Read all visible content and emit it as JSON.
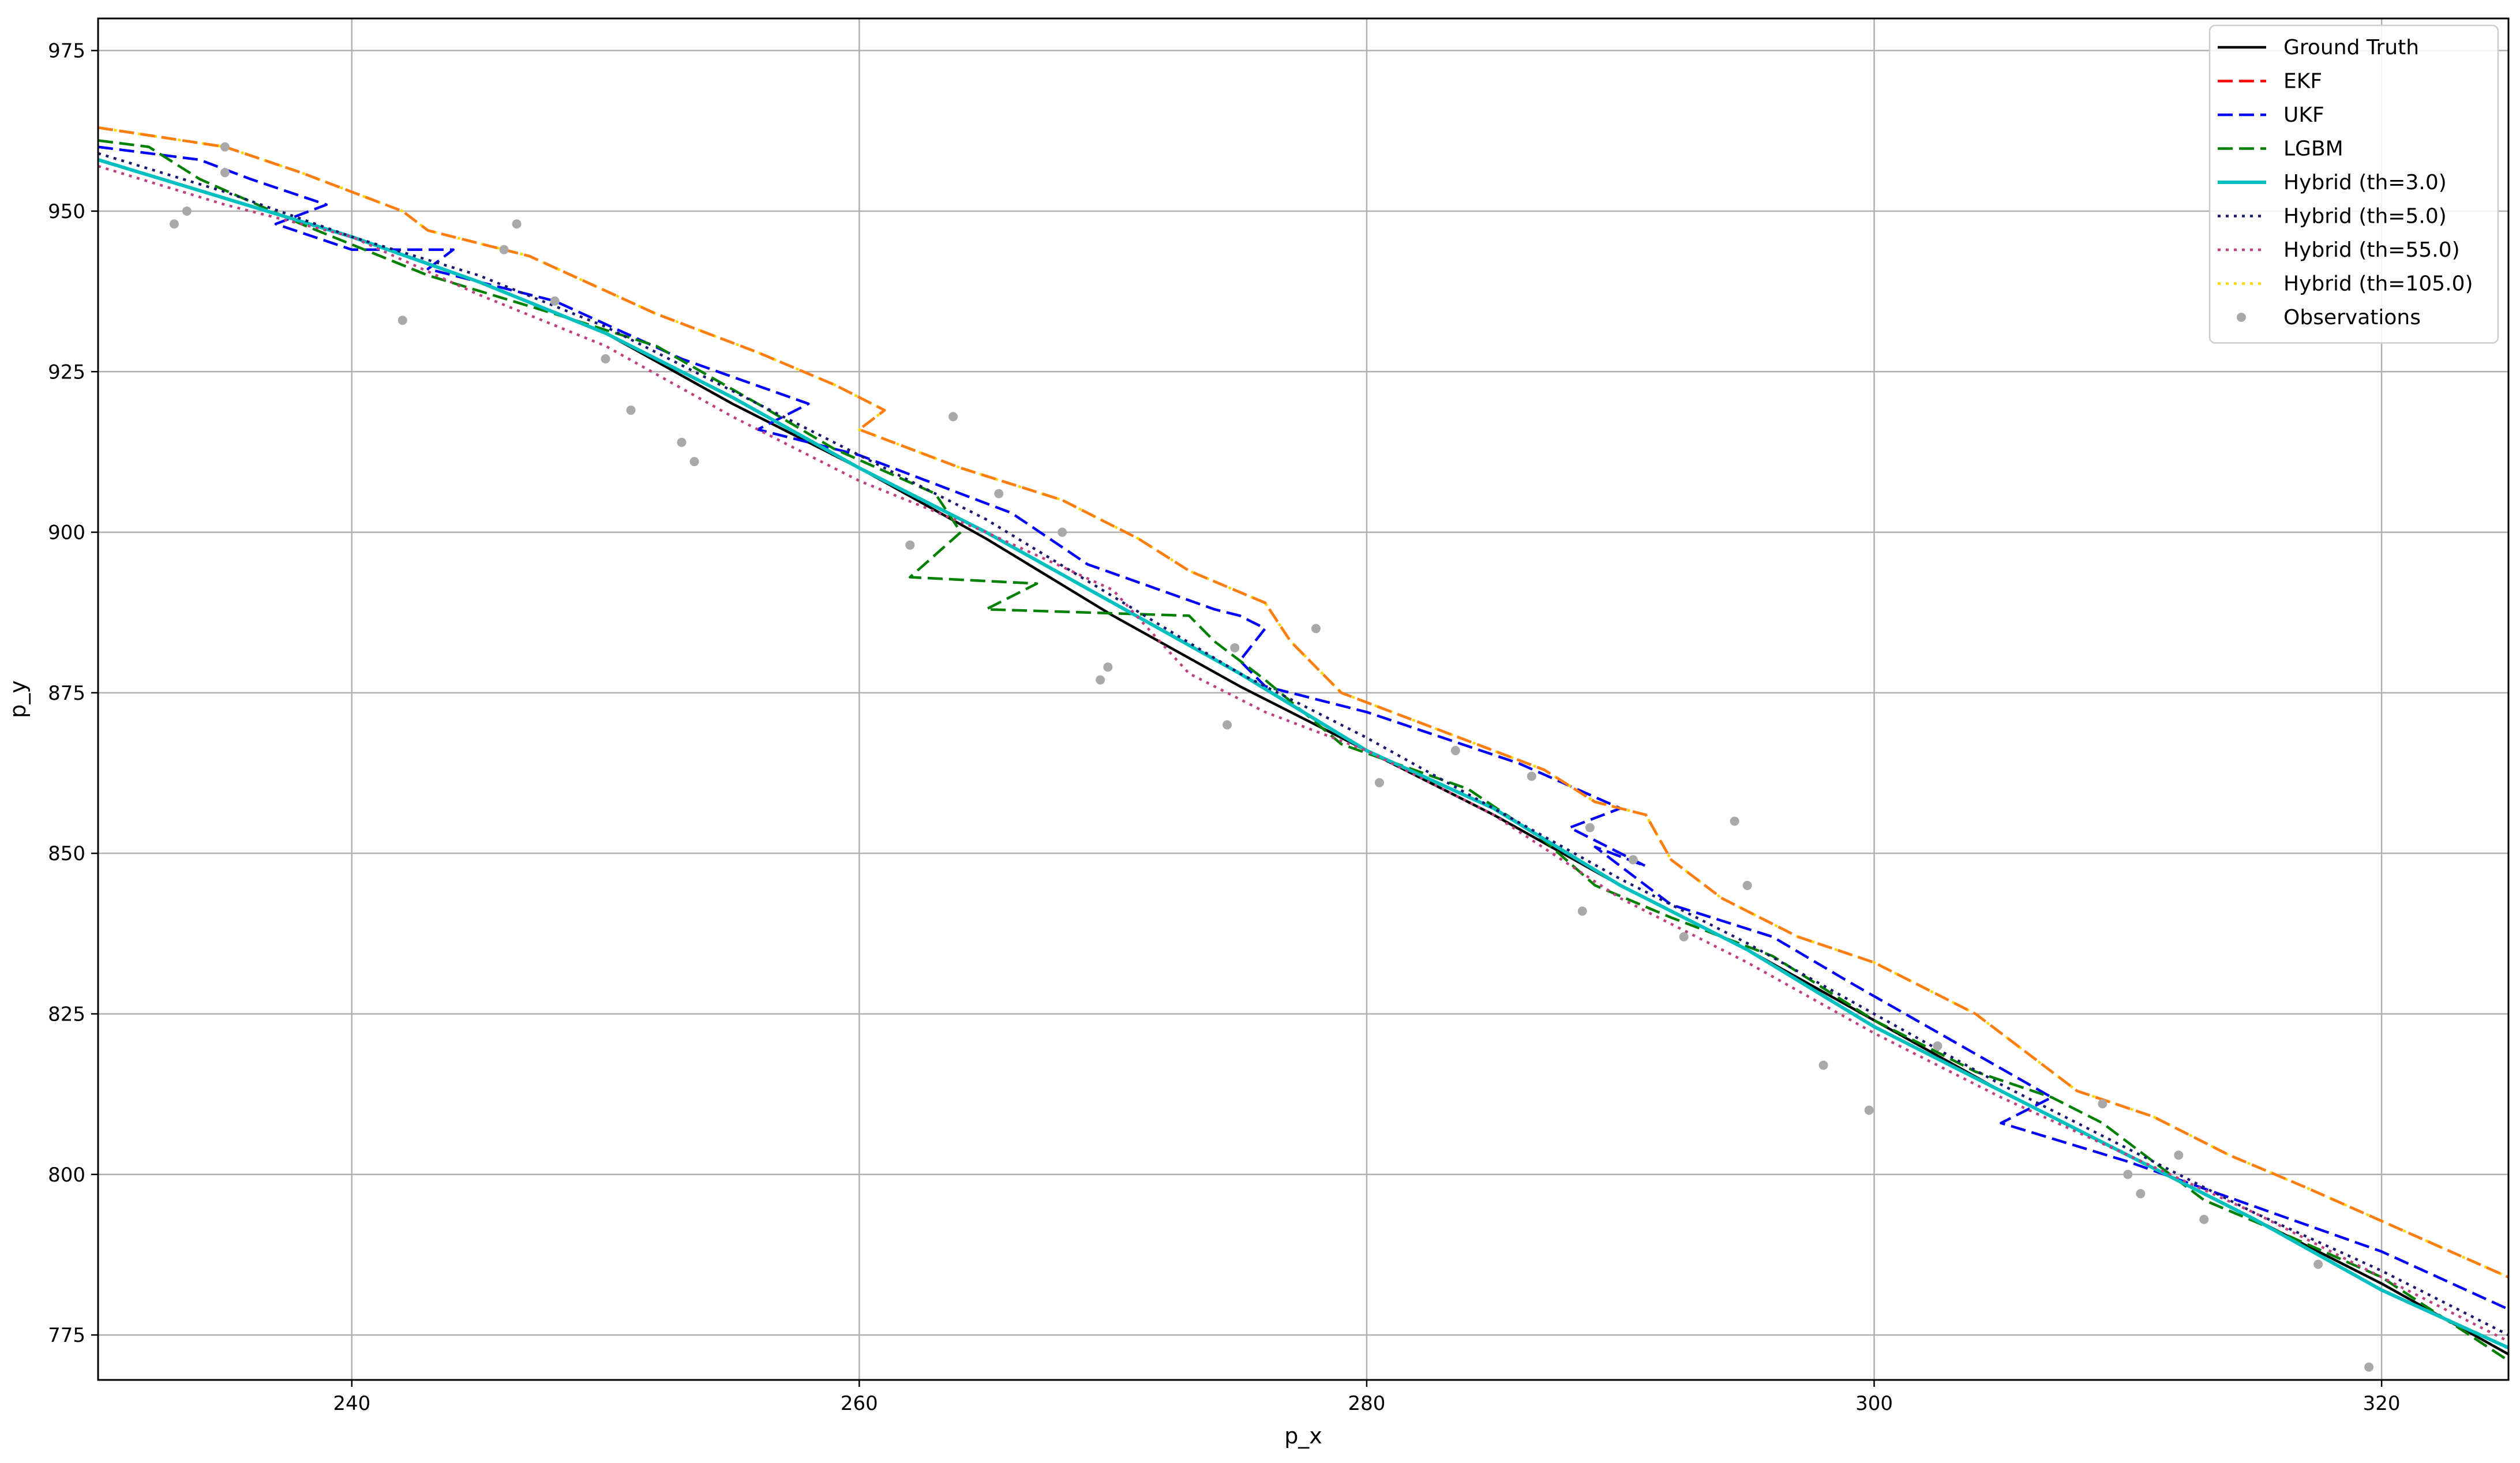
{
  "chart_data": {
    "type": "line",
    "xlabel": "p_x",
    "ylabel": "p_y",
    "xlim": [
      230,
      325
    ],
    "ylim": [
      768,
      980
    ],
    "xticks": [
      240,
      260,
      280,
      300,
      320
    ],
    "yticks": [
      775,
      800,
      825,
      850,
      875,
      900,
      925,
      950,
      975
    ],
    "grid": true,
    "legend_position": "top-right",
    "series": [
      {
        "name": "Ground Truth",
        "color": "#000000",
        "style": "solid",
        "x": [
          230,
          235,
          240,
          245,
          250,
          255,
          260,
          265,
          270,
          275,
          280,
          285,
          290,
          295,
          300,
          305,
          310,
          315,
          320,
          325
        ],
        "y": [
          958,
          952,
          946,
          939,
          931,
          920,
          910,
          899,
          887,
          876,
          866,
          856,
          845,
          835,
          824,
          813,
          803,
          793,
          783,
          772
        ]
      },
      {
        "name": "EKF",
        "color": "#ff0000",
        "style": "dashed",
        "x": [
          230,
          235,
          238,
          242,
          243,
          247,
          252,
          256,
          259,
          261,
          260,
          264,
          268,
          271,
          273,
          276,
          277,
          279,
          283,
          287,
          289,
          291,
          292,
          294,
          297,
          300,
          304,
          308,
          311,
          314,
          317,
          321,
          325
        ],
        "y": [
          963,
          960,
          956,
          950,
          947,
          943,
          934,
          928,
          923,
          919,
          916,
          910,
          905,
          899,
          894,
          889,
          883,
          875,
          869,
          863,
          858,
          856,
          849,
          843,
          837,
          833,
          825,
          813,
          809,
          803,
          798,
          791,
          784
        ]
      },
      {
        "name": "UKF",
        "color": "#0000ff",
        "style": "dashed",
        "x": [
          230,
          234,
          236,
          239,
          237,
          240,
          244,
          243,
          248,
          253,
          258,
          256,
          260,
          264,
          266,
          269,
          274,
          275,
          276,
          275,
          276,
          280,
          283,
          286,
          290,
          288,
          291,
          289,
          292,
          296,
          299,
          303,
          307,
          305,
          310,
          315,
          320,
          325
        ],
        "y": [
          960,
          958,
          955,
          951,
          948,
          944,
          944,
          941,
          936,
          927,
          920,
          916,
          912,
          906,
          903,
          895,
          888,
          887,
          885,
          880,
          876,
          872,
          868,
          864,
          857,
          854,
          848,
          851,
          842,
          837,
          830,
          821,
          812,
          808,
          802,
          795,
          788,
          779
        ]
      },
      {
        "name": "LGBM",
        "color": "#008000",
        "style": "dashed",
        "x": [
          230,
          232,
          234,
          238,
          243,
          248,
          252,
          256,
          259,
          263,
          264,
          262,
          267,
          265,
          273,
          274,
          276,
          279,
          284,
          287,
          289,
          292,
          296,
          300,
          304,
          307,
          309,
          311,
          313,
          316,
          320,
          325
        ],
        "y": [
          961,
          960,
          955,
          948,
          940,
          934,
          929,
          920,
          913,
          906,
          900,
          893,
          892,
          888,
          887,
          883,
          877,
          867,
          860,
          852,
          845,
          840,
          834,
          824,
          816,
          812,
          808,
          802,
          796,
          791,
          784,
          771
        ]
      },
      {
        "name": "Hybrid (th=3.0)",
        "color": "#00bfbf",
        "style": "solid",
        "x": [
          230,
          235,
          240,
          245,
          250,
          255,
          260,
          265,
          270,
          275,
          280,
          285,
          290,
          295,
          300,
          305,
          310,
          315,
          320,
          325
        ],
        "y": [
          958,
          952,
          946,
          939,
          931,
          921,
          910,
          900,
          889,
          878,
          866,
          857,
          845,
          835,
          823,
          813,
          803,
          793,
          782,
          773
        ]
      },
      {
        "name": "Hybrid (th=5.0)",
        "color": "#191970",
        "style": "dotted",
        "x": [
          230,
          235,
          240,
          245,
          250,
          255,
          260,
          265,
          270,
          275,
          280,
          285,
          290,
          295,
          300,
          305,
          310,
          315,
          320,
          325
        ],
        "y": [
          959,
          953,
          946,
          940,
          932,
          922,
          912,
          902,
          890,
          878,
          868,
          857,
          846,
          836,
          825,
          814,
          804,
          794,
          785,
          775
        ]
      },
      {
        "name": "Hybrid (th=55.0)",
        "color": "#c0407f",
        "style": "dotted",
        "x": [
          230,
          235,
          240,
          245,
          250,
          255,
          260,
          265,
          270,
          273,
          276,
          280,
          285,
          290,
          295,
          300,
          305,
          310,
          315,
          320,
          325
        ],
        "y": [
          957,
          951,
          946,
          937,
          929,
          918,
          908,
          900,
          891,
          878,
          872,
          866,
          856,
          843,
          833,
          822,
          812,
          803,
          794,
          784,
          774
        ]
      },
      {
        "name": "Hybrid (th=105.0)",
        "color": "#ffd700",
        "style": "dotted",
        "x": [
          230,
          235,
          238,
          242,
          243,
          247,
          252,
          256,
          259,
          261,
          260,
          264,
          268,
          271,
          273,
          276,
          277,
          279,
          283,
          287,
          289,
          291,
          292,
          294,
          297,
          300,
          304,
          308,
          311,
          314,
          317,
          321,
          325
        ],
        "y": [
          963,
          960,
          956,
          950,
          947,
          943,
          934,
          928,
          923,
          919,
          916,
          910,
          905,
          899,
          894,
          889,
          883,
          875,
          869,
          863,
          858,
          856,
          849,
          843,
          837,
          833,
          825,
          813,
          809,
          803,
          798,
          791,
          784
        ]
      }
    ],
    "overlay_orange": {
      "color": "#ff7f0e",
      "style": "dashed"
    },
    "observations": {
      "name": "Observations",
      "color": "#a9a9a9",
      "x": [
        233,
        233.5,
        235,
        235,
        242,
        246,
        246.5,
        248,
        250,
        251,
        253,
        253.5,
        262,
        263.7,
        265.5,
        268,
        269.5,
        269.8,
        274.5,
        274.8,
        278,
        280.5,
        283.5,
        286.5,
        288.5,
        288.8,
        290.5,
        292.5,
        294.5,
        295,
        298,
        299.8,
        302.5,
        309,
        310,
        310.5,
        312,
        313,
        317.5,
        319.5
      ],
      "y": [
        948,
        950,
        956,
        960,
        933,
        944,
        948,
        936,
        927,
        919,
        914,
        911,
        898,
        918,
        906,
        900,
        877,
        879,
        870,
        882,
        885,
        861,
        866,
        862,
        841,
        854,
        849,
        837,
        855,
        845,
        817,
        810,
        820,
        811,
        800,
        797,
        803,
        793,
        786,
        770
      ]
    },
    "legend": [
      "Ground Truth",
      "EKF",
      "UKF",
      "LGBM",
      "Hybrid (th=3.0)",
      "Hybrid (th=5.0)",
      "Hybrid (th=55.0)",
      "Hybrid (th=105.0)",
      "Observations"
    ]
  }
}
